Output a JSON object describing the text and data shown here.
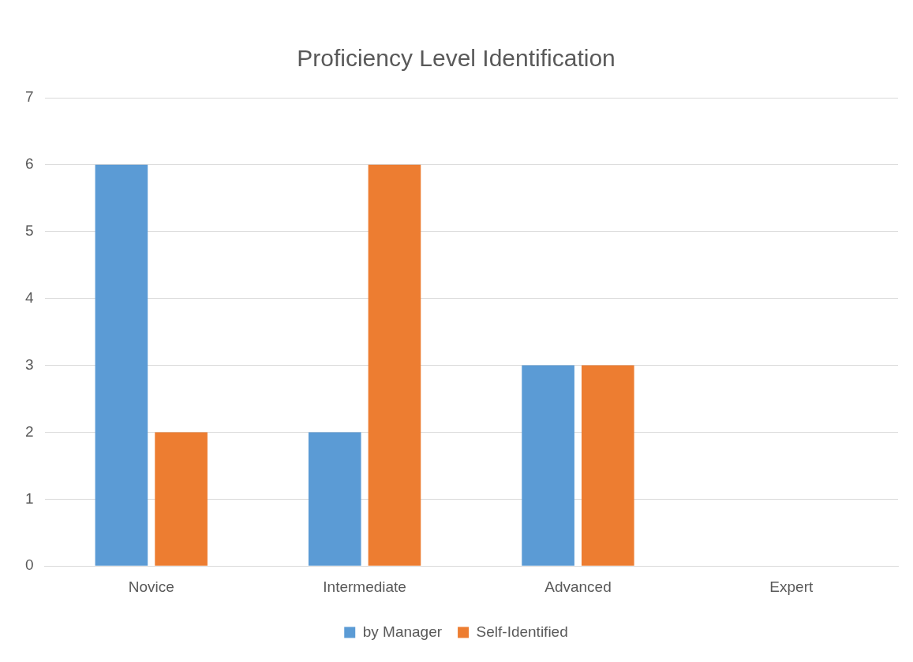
{
  "chart_data": {
    "type": "bar",
    "title": "Proficiency Level Identification",
    "categories": [
      "Novice",
      "Intermediate",
      "Advanced",
      "Expert"
    ],
    "series": [
      {
        "name": "by Manager",
        "color": "#5b9bd5",
        "values": [
          6,
          2,
          3,
          0
        ]
      },
      {
        "name": "Self-Identified",
        "color": "#ed7d31",
        "values": [
          2,
          6,
          3,
          0
        ]
      }
    ],
    "ylim": [
      0,
      7
    ],
    "yticks": [
      0,
      1,
      2,
      3,
      4,
      5,
      6,
      7
    ],
    "grid": "y",
    "legend": "bottom"
  }
}
